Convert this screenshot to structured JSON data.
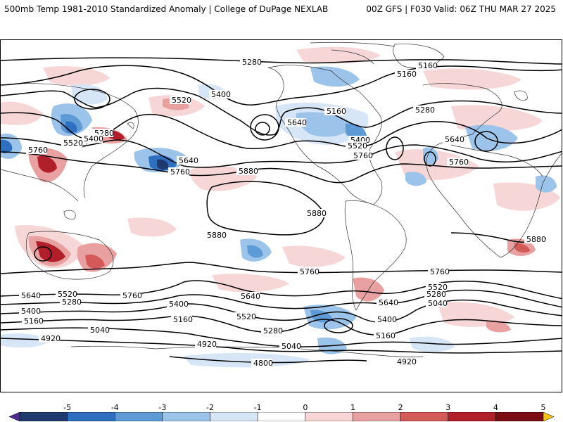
{
  "header": {
    "title": "500mb Temp 1981-2010 Standardized Anomaly | College of DuPage NEXLAB",
    "run_info": "00Z GFS | F030 Valid: 06Z THU MAR 27 2025"
  },
  "contour_labels": {
    "l5280_npac": "5280",
    "l5160_ca": "5160",
    "l5160_ca2": "5160",
    "l5400_ak": "5400",
    "l5520_nwpac": "5520",
    "l5280_japan": "5280",
    "l5400_japan": "5400",
    "l5520_japan": "5520",
    "l5760_china": "5760",
    "l5640_pac": "5640",
    "l5760_pac": "5760",
    "l5880_pac": "5880",
    "l5640_us": "5640",
    "l5160_hudson": "5160",
    "l5400_us": "5400",
    "l5520_us": "5520",
    "l5760_us": "5760",
    "l5280_atl": "5280",
    "l5640_eur": "5640",
    "l5760_afr": "5760",
    "l5880_sam": "5880",
    "l5880_spac": "5880",
    "l5880_safr": "5880",
    "l5760_sio": "5760",
    "l5760_spac": "5760",
    "l5760_satl": "5760",
    "l5640_sw": "5640",
    "l5520_sw": "5520",
    "l5400_sw": "5400",
    "l5280_sw": "5280",
    "l5160_sw": "5160",
    "l5040_sw": "5040",
    "l4920_sw": "4920",
    "l5640_spac2": "5640",
    "l5400_spac": "5400",
    "l5160_spac": "5160",
    "l5520_spac": "5520",
    "l5280_spac": "5280",
    "l5040_spac": "5040",
    "l4920_spac": "4920",
    "l4800_spac": "4800",
    "l5640_sam": "5640",
    "l5400_sam": "5400",
    "l5160_sam": "5160",
    "l5520_sam": "5520",
    "l5280_satl": "5280",
    "l5040_satl": "5040",
    "l4920_satl": "4920"
  },
  "colorbar": {
    "ticks": [
      "-5",
      "-4",
      "-3",
      "-2",
      "-1",
      "0",
      "1",
      "2",
      "3",
      "4",
      "5"
    ],
    "colors": [
      "#4b2a8c",
      "#1f3a6e",
      "#2e6fbf",
      "#5d9ad6",
      "#9cc3ea",
      "#d6e6f6",
      "#ffffff",
      "#f6d6d6",
      "#e8a0a0",
      "#d45a5a",
      "#b01f2a",
      "#7a0c14",
      "#f2c418"
    ]
  }
}
